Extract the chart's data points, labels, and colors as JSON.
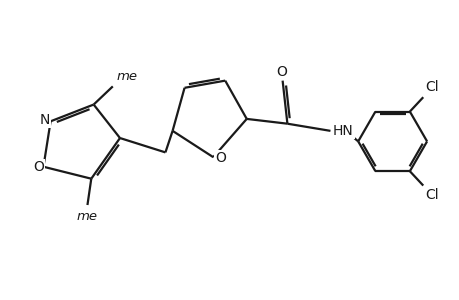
{
  "bg_color": "#ffffff",
  "line_color": "#1a1a1a",
  "line_width": 1.6,
  "font_size": 10,
  "figsize": [
    4.6,
    3.0
  ],
  "dpi": 100,
  "xlim": [
    -0.3,
    9.2
  ],
  "ylim": [
    0.5,
    6.5
  ]
}
